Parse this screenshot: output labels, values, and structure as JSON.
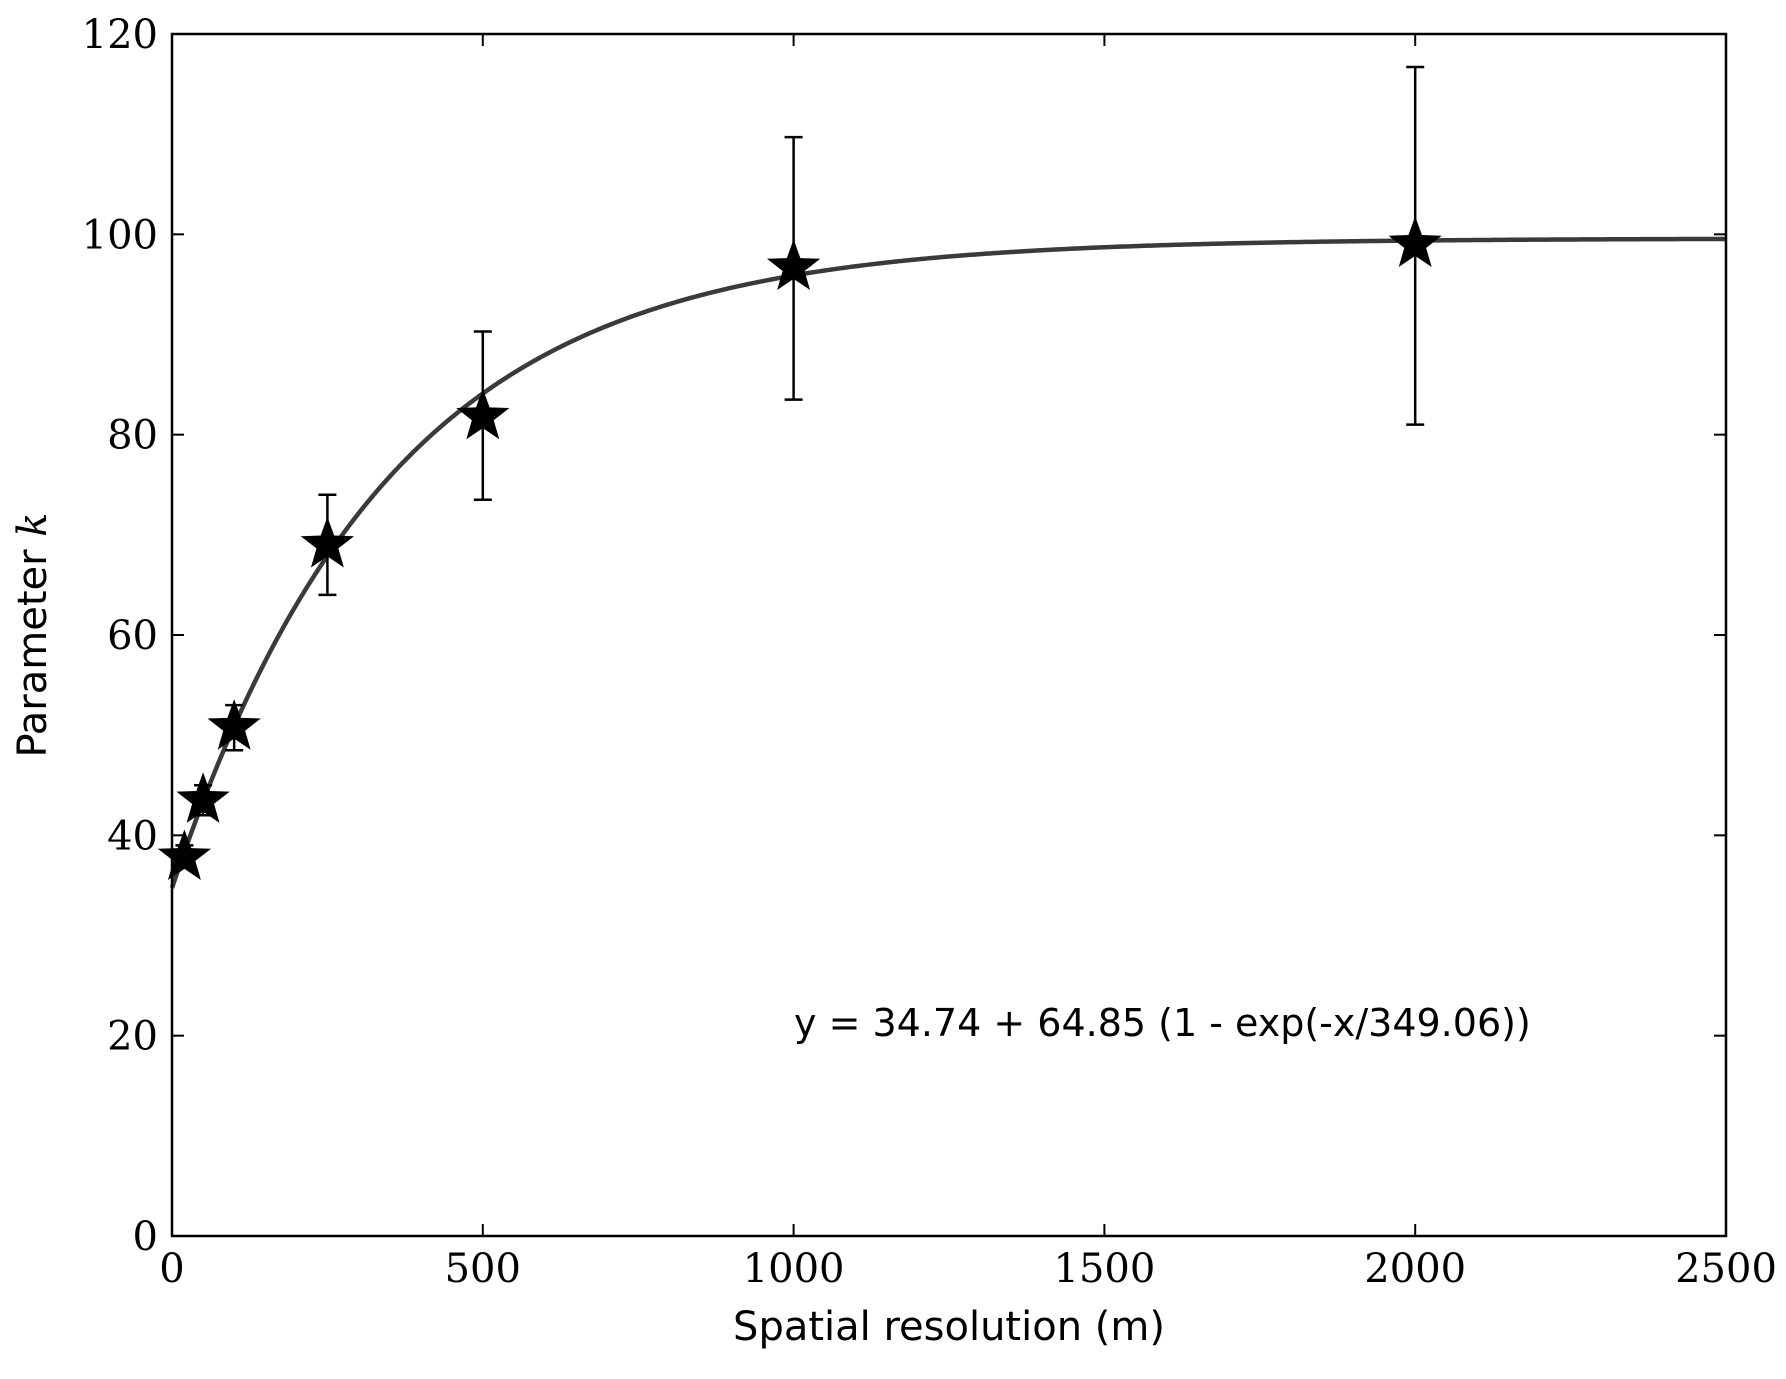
{
  "chart_data": {
    "type": "scatter",
    "xlabel": "Spatial resolution (m)",
    "ylabel_text": "Parameter",
    "ylabel_symbol": "k",
    "xlim": [
      0,
      2500
    ],
    "ylim": [
      0,
      120
    ],
    "xticks": [
      0,
      500,
      1000,
      1500,
      2000,
      2500
    ],
    "yticks": [
      0,
      20,
      40,
      60,
      80,
      100,
      120
    ],
    "xtick_labels": [
      "0",
      "500",
      "1000",
      "1500",
      "2000",
      "2500"
    ],
    "ytick_labels": [
      "0",
      "20",
      "40",
      "60",
      "80",
      "100",
      "120"
    ],
    "grid": false,
    "points": [
      {
        "x": 20,
        "y": 37.8,
        "err_low": 36.8,
        "err_high": 39.0
      },
      {
        "x": 50,
        "y": 43.5,
        "err_low": 42.0,
        "err_high": 45.0
      },
      {
        "x": 100,
        "y": 50.8,
        "err_low": 48.5,
        "err_high": 53.0
      },
      {
        "x": 250,
        "y": 69.0,
        "err_low": 64.0,
        "err_high": 74.0
      },
      {
        "x": 500,
        "y": 81.8,
        "err_low": 73.5,
        "err_high": 90.3
      },
      {
        "x": 1000,
        "y": 96.7,
        "err_low": 83.5,
        "err_high": 109.7
      },
      {
        "x": 2000,
        "y": 99.0,
        "err_low": 81.0,
        "err_high": 116.7
      }
    ],
    "fit": {
      "a": 34.74,
      "b": 64.85,
      "c": 349.06
    },
    "annotation": "y = 34.74 + 64.85 (1 - exp(-x/349.06))",
    "colors": {
      "markers": "#000000",
      "fit_line": "#3a3a3a",
      "axes": "#000000"
    }
  }
}
